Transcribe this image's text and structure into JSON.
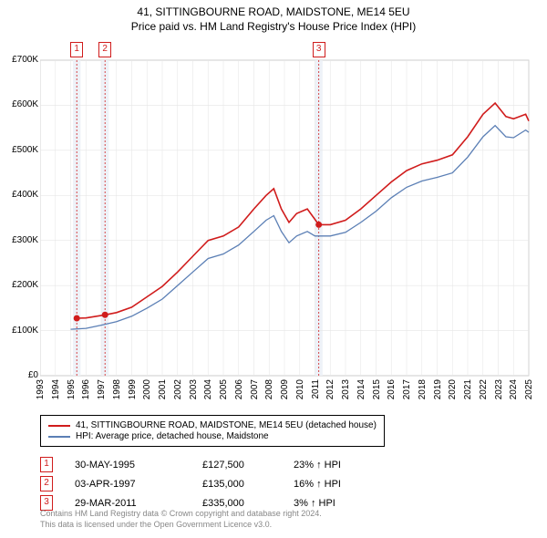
{
  "title": {
    "line1": "41, SITTINGBOURNE ROAD, MAIDSTONE, ME14 5EU",
    "line2": "Price paid vs. HM Land Registry's House Price Index (HPI)"
  },
  "chart": {
    "plot_bg": "#ffffff",
    "grid_color": "#e6e6e6",
    "axis_color": "#888888",
    "y": {
      "min": 0,
      "max": 700000,
      "step": 100000,
      "labels": [
        "£0",
        "£100K",
        "£200K",
        "£300K",
        "£400K",
        "£500K",
        "£600K",
        "£700K"
      ]
    },
    "x": {
      "min": 1993,
      "max": 2025,
      "labels": [
        "1993",
        "1994",
        "1995",
        "1996",
        "1997",
        "1998",
        "1999",
        "2000",
        "2001",
        "2002",
        "2003",
        "2004",
        "2005",
        "2006",
        "2007",
        "2008",
        "2009",
        "2010",
        "2011",
        "2012",
        "2013",
        "2014",
        "2015",
        "2016",
        "2017",
        "2018",
        "2019",
        "2020",
        "2021",
        "2022",
        "2023",
        "2024",
        "2025"
      ]
    },
    "shaded_bands": [
      {
        "from": 1995.15,
        "to": 1995.65,
        "color": "#eef2f8"
      },
      {
        "from": 1997.0,
        "to": 1997.5,
        "color": "#eef2f8"
      },
      {
        "from": 2011.0,
        "to": 2011.5,
        "color": "#eef2f8"
      }
    ],
    "marker_lines": [
      {
        "x": 1995.4,
        "color": "#d01c1c"
      },
      {
        "x": 1997.25,
        "color": "#d01c1c"
      },
      {
        "x": 2011.25,
        "color": "#d01c1c"
      }
    ],
    "marker_boxes": [
      {
        "x": 1995.4,
        "label": "1",
        "color": "#d01c1c"
      },
      {
        "x": 1997.25,
        "label": "2",
        "color": "#d01c1c"
      },
      {
        "x": 2011.25,
        "label": "3",
        "color": "#d01c1c"
      }
    ],
    "series": [
      {
        "name": "subject_property",
        "color": "#d01c1c",
        "width": 1.6,
        "points": [
          [
            1995.4,
            127500
          ],
          [
            1996,
            128000
          ],
          [
            1997.25,
            135000
          ],
          [
            1998,
            140000
          ],
          [
            1999,
            152000
          ],
          [
            2000,
            175000
          ],
          [
            2001,
            198000
          ],
          [
            2002,
            230000
          ],
          [
            2003,
            265000
          ],
          [
            2004,
            300000
          ],
          [
            2005,
            310000
          ],
          [
            2006,
            330000
          ],
          [
            2007,
            370000
          ],
          [
            2007.8,
            400000
          ],
          [
            2008.3,
            415000
          ],
          [
            2008.8,
            370000
          ],
          [
            2009.3,
            340000
          ],
          [
            2009.8,
            360000
          ],
          [
            2010.5,
            370000
          ],
          [
            2011.25,
            335000
          ],
          [
            2012,
            335000
          ],
          [
            2013,
            345000
          ],
          [
            2014,
            370000
          ],
          [
            2015,
            400000
          ],
          [
            2016,
            430000
          ],
          [
            2017,
            455000
          ],
          [
            2018,
            470000
          ],
          [
            2019,
            478000
          ],
          [
            2020,
            490000
          ],
          [
            2021,
            530000
          ],
          [
            2022,
            580000
          ],
          [
            2022.8,
            605000
          ],
          [
            2023.5,
            575000
          ],
          [
            2024,
            570000
          ],
          [
            2024.8,
            580000
          ],
          [
            2025,
            565000
          ]
        ],
        "dots": [
          [
            1995.4,
            127500
          ],
          [
            1997.25,
            135000
          ],
          [
            2011.25,
            335000
          ]
        ]
      },
      {
        "name": "hpi",
        "color": "#5b7fb5",
        "width": 1.3,
        "points": [
          [
            1995,
            103000
          ],
          [
            1996,
            105000
          ],
          [
            1997,
            112000
          ],
          [
            1998,
            120000
          ],
          [
            1999,
            132000
          ],
          [
            2000,
            150000
          ],
          [
            2001,
            170000
          ],
          [
            2002,
            200000
          ],
          [
            2003,
            230000
          ],
          [
            2004,
            260000
          ],
          [
            2005,
            270000
          ],
          [
            2006,
            290000
          ],
          [
            2007,
            320000
          ],
          [
            2007.8,
            345000
          ],
          [
            2008.3,
            355000
          ],
          [
            2008.8,
            320000
          ],
          [
            2009.3,
            295000
          ],
          [
            2009.8,
            310000
          ],
          [
            2010.5,
            320000
          ],
          [
            2011,
            310000
          ],
          [
            2012,
            310000
          ],
          [
            2013,
            318000
          ],
          [
            2014,
            340000
          ],
          [
            2015,
            365000
          ],
          [
            2016,
            395000
          ],
          [
            2017,
            418000
          ],
          [
            2018,
            432000
          ],
          [
            2019,
            440000
          ],
          [
            2020,
            450000
          ],
          [
            2021,
            485000
          ],
          [
            2022,
            530000
          ],
          [
            2022.8,
            555000
          ],
          [
            2023.5,
            530000
          ],
          [
            2024,
            528000
          ],
          [
            2024.8,
            545000
          ],
          [
            2025,
            540000
          ]
        ]
      }
    ]
  },
  "legend": {
    "items": [
      {
        "color": "#d01c1c",
        "label": "41, SITTINGBOURNE ROAD, MAIDSTONE, ME14 5EU (detached house)"
      },
      {
        "color": "#5b7fb5",
        "label": "HPI: Average price, detached house, Maidstone"
      }
    ]
  },
  "sales": [
    {
      "n": "1",
      "color": "#d01c1c",
      "date": "30-MAY-1995",
      "price": "£127,500",
      "pct": "23% ↑ HPI"
    },
    {
      "n": "2",
      "color": "#d01c1c",
      "date": "03-APR-1997",
      "price": "£135,000",
      "pct": "16% ↑ HPI"
    },
    {
      "n": "3",
      "color": "#d01c1c",
      "date": "29-MAR-2011",
      "price": "£335,000",
      "pct": "3% ↑ HPI"
    }
  ],
  "footer": {
    "line1": "Contains HM Land Registry data © Crown copyright and database right 2024.",
    "line2": "This data is licensed under the Open Government Licence v3.0."
  }
}
